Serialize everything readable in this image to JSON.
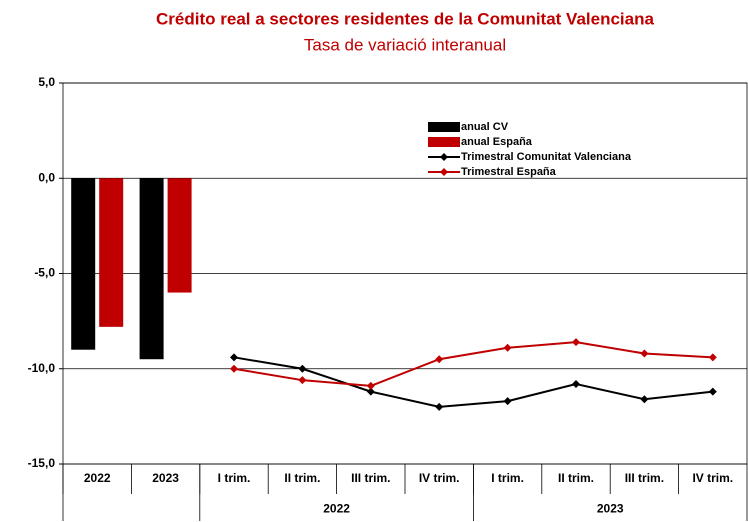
{
  "chart_data": {
    "type": "bar-line",
    "title": "Crédito real a sectores residentes de la Comunitat Valenciana",
    "subtitle": "Tasa de variació interanual",
    "categories": [
      "2022",
      "2023",
      "I trim.",
      "II trim.",
      "III trim.",
      "IV trim.",
      "I trim.",
      "II trim.",
      "III trim.",
      "IV trim."
    ],
    "groups": [
      {
        "label": "2022",
        "start": 2,
        "end": 5
      },
      {
        "label": "2023",
        "start": 6,
        "end": 9
      }
    ],
    "series": [
      {
        "name": "anual CV",
        "kind": "bar",
        "color": "#000000",
        "values": [
          -9.0,
          -9.5,
          null,
          null,
          null,
          null,
          null,
          null,
          null,
          null
        ]
      },
      {
        "name": "anual España",
        "kind": "bar",
        "color": "#c00000",
        "values": [
          -7.8,
          -6.0,
          null,
          null,
          null,
          null,
          null,
          null,
          null,
          null
        ]
      },
      {
        "name": "Trimestral Comunitat Valenciana",
        "kind": "line",
        "color": "#000000",
        "values": [
          null,
          null,
          -9.4,
          -10.0,
          -11.2,
          -12.0,
          -11.7,
          -10.8,
          -11.6,
          -11.2
        ]
      },
      {
        "name": "Trimestral España",
        "kind": "line",
        "color": "#c00000",
        "values": [
          null,
          null,
          -10.0,
          -10.6,
          -10.9,
          -9.5,
          -8.9,
          -8.6,
          -9.2,
          -9.4
        ]
      }
    ],
    "ylim": [
      -15,
      5
    ],
    "yticks": [
      {
        "value": -15,
        "label": "-15,0"
      },
      {
        "value": -10,
        "label": "-10,0"
      },
      {
        "value": -5,
        "label": "-5,0"
      },
      {
        "value": 0,
        "label": "0,0"
      },
      {
        "value": 5,
        "label": "5,0"
      }
    ],
    "grid": true
  }
}
